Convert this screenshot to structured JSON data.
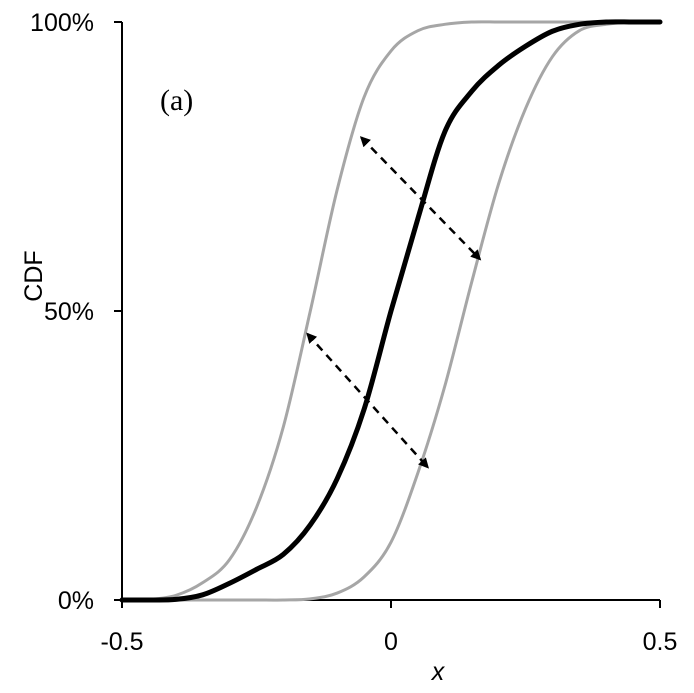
{
  "chart_data": {
    "type": "line",
    "title": "",
    "xlabel": "x",
    "ylabel": "CDF",
    "xlim": [
      -0.5,
      0.5
    ],
    "ylim": [
      0,
      100
    ],
    "x_ticks": [
      -0.5,
      0,
      0.5
    ],
    "x_tick_labels": [
      "-0.5",
      "0",
      "0.5"
    ],
    "y_ticks": [
      0,
      50,
      100
    ],
    "y_tick_labels": [
      "0%",
      "50%",
      "100%"
    ],
    "grid": false,
    "legend": "none",
    "annotation": "(a)",
    "colors": {
      "main_curve": "#000000",
      "bound_curves": "#a6a6a6",
      "axes": "#000000",
      "arrows": "#000000"
    },
    "series": [
      {
        "x": [
          -0.5,
          -0.45,
          -0.4,
          -0.35,
          -0.3,
          -0.25,
          -0.2,
          -0.15,
          -0.1,
          -0.05,
          0,
          0.05,
          0.1,
          0.15,
          0.2,
          0.25,
          0.3,
          0.35,
          0.4,
          0.45,
          0.5
        ],
        "values": [
          0,
          0,
          0.1,
          0.9,
          2.9,
          5.3,
          7.9,
          13,
          21,
          33,
          50,
          66,
          81,
          88,
          92.5,
          95.8,
          98.4,
          99.6,
          100,
          100,
          100
        ],
        "style": "main"
      },
      {
        "x": [
          -0.5,
          -0.45,
          -0.4,
          -0.35,
          -0.3,
          -0.25,
          -0.2,
          -0.15,
          -0.1,
          -0.05,
          0,
          0.05,
          0.1,
          0.15,
          0.2,
          0.25,
          0.3,
          0.35,
          0.4,
          0.45,
          0.5
        ],
        "values": [
          0,
          0.1,
          0.8,
          3,
          7,
          16,
          30,
          50,
          71,
          87,
          95,
          98.5,
          99.6,
          100,
          100,
          100,
          100,
          100,
          100,
          100,
          100
        ],
        "style": "bound"
      },
      {
        "x": [
          -0.5,
          -0.45,
          -0.4,
          -0.35,
          -0.3,
          -0.25,
          -0.2,
          -0.15,
          -0.1,
          -0.05,
          0,
          0.05,
          0.1,
          0.15,
          0.2,
          0.25,
          0.3,
          0.35,
          0.4,
          0.45,
          0.5
        ],
        "values": [
          0,
          0,
          0,
          0,
          0,
          0,
          0,
          0.2,
          1.2,
          4,
          10,
          22,
          37,
          55,
          72,
          85,
          94,
          98.5,
          99.6,
          100,
          100
        ],
        "style": "bound"
      }
    ],
    "arrows": [
      {
        "from": [
          -0.055,
          80
        ],
        "to": [
          0.165,
          59
        ]
      },
      {
        "from": [
          -0.155,
          46
        ],
        "to": [
          0.068,
          23
        ]
      }
    ]
  }
}
